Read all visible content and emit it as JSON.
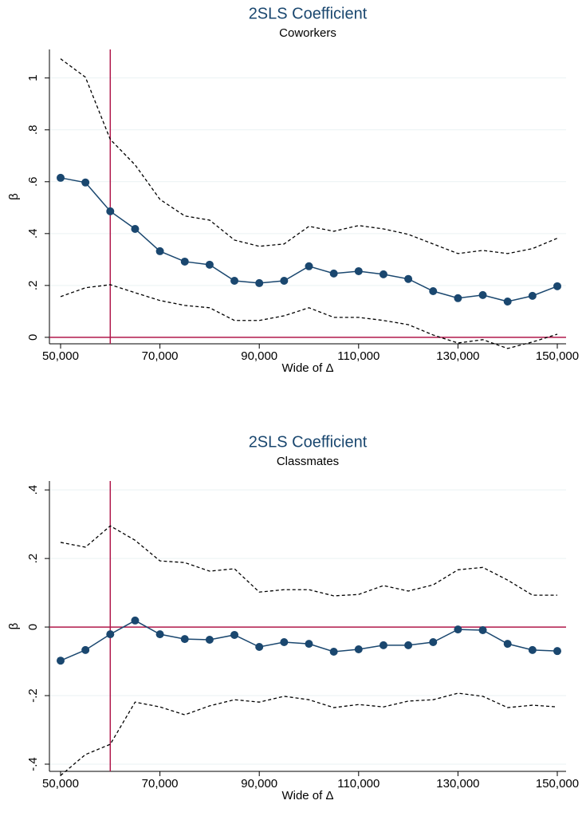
{
  "chart_data": [
    {
      "type": "line",
      "title": "2SLS Coefficient",
      "subtitle": "Coworkers",
      "x_label": "Wide of Δ",
      "y_label": "β",
      "x": [
        50000,
        55000,
        60000,
        65000,
        70000,
        75000,
        80000,
        85000,
        90000,
        95000,
        100000,
        105000,
        110000,
        115000,
        120000,
        125000,
        130000,
        135000,
        140000,
        145000,
        150000
      ],
      "series": [
        {
          "color": "#1a476f",
          "style": "solid",
          "markers": true,
          "values": [
            0.615,
            0.597,
            0.486,
            0.418,
            0.332,
            0.292,
            0.28,
            0.218,
            0.209,
            0.218,
            0.274,
            0.246,
            0.255,
            0.243,
            0.225,
            0.178,
            0.151,
            0.163,
            0.138,
            0.16,
            0.197
          ]
        },
        {
          "color": "#000000",
          "style": "dashed",
          "markers": false,
          "values": [
            1.074,
            1.003,
            0.763,
            0.665,
            0.532,
            0.468,
            0.452,
            0.375,
            0.351,
            0.36,
            0.428,
            0.409,
            0.431,
            0.418,
            0.397,
            0.36,
            0.323,
            0.335,
            0.323,
            0.342,
            0.382
          ]
        },
        {
          "color": "#000000",
          "style": "dashed",
          "markers": false,
          "values": [
            0.157,
            0.191,
            0.203,
            0.172,
            0.142,
            0.123,
            0.114,
            0.065,
            0.065,
            0.083,
            0.114,
            0.077,
            0.077,
            0.065,
            0.049,
            0.009,
            -0.022,
            -0.009,
            -0.043,
            -0.018,
            0.012
          ]
        }
      ],
      "xlim": [
        50000,
        150000
      ],
      "xticks": [
        {
          "value": 50000,
          "label": "50,000"
        },
        {
          "value": 70000,
          "label": "70,000"
        },
        {
          "value": 90000,
          "label": "90,000"
        },
        {
          "value": 110000,
          "label": "110,000"
        },
        {
          "value": 130000,
          "label": "130,000"
        },
        {
          "value": 150000,
          "label": "150,000"
        }
      ],
      "ylim": [
        -0.025,
        1.11
      ],
      "yticks": [
        0,
        {
          "value": 0.2,
          "label": ".2"
        },
        {
          "value": 0.4,
          "label": ".4"
        },
        {
          "value": 0.6,
          "label": ".6"
        },
        {
          "value": 0.8,
          "label": ".8"
        },
        1
      ],
      "grid": true,
      "vlines": [
        60000
      ],
      "hlines": [
        0
      ],
      "refline_color": "#b0174a"
    },
    {
      "type": "line",
      "title": "2SLS Coefficient",
      "subtitle": "Classmates",
      "x_label": "Wide of Δ",
      "y_label": "β",
      "x": [
        50000,
        55000,
        60000,
        65000,
        70000,
        75000,
        80000,
        85000,
        90000,
        95000,
        100000,
        105000,
        110000,
        115000,
        120000,
        125000,
        130000,
        135000,
        140000,
        145000,
        150000
      ],
      "series": [
        {
          "color": "#1a476f",
          "style": "solid",
          "markers": true,
          "values": [
            -0.098,
            -0.067,
            -0.021,
            0.019,
            -0.021,
            -0.035,
            -0.037,
            -0.023,
            -0.058,
            -0.044,
            -0.049,
            -0.072,
            -0.065,
            -0.053,
            -0.053,
            -0.044,
            -0.007,
            -0.009,
            -0.049,
            -0.067,
            -0.07
          ]
        },
        {
          "color": "#000000",
          "style": "dashed",
          "markers": false,
          "values": [
            0.247,
            0.233,
            0.295,
            0.253,
            0.193,
            0.188,
            0.163,
            0.17,
            0.102,
            0.109,
            0.109,
            0.091,
            0.095,
            0.121,
            0.105,
            0.123,
            0.167,
            0.174,
            0.137,
            0.093,
            0.093
          ]
        },
        {
          "color": "#000000",
          "style": "dashed",
          "markers": false,
          "values": [
            -0.433,
            -0.372,
            -0.342,
            -0.219,
            -0.233,
            -0.256,
            -0.23,
            -0.212,
            -0.219,
            -0.202,
            -0.212,
            -0.235,
            -0.226,
            -0.233,
            -0.216,
            -0.212,
            -0.193,
            -0.202,
            -0.235,
            -0.228,
            -0.233
          ]
        }
      ],
      "xlim": [
        50000,
        150000
      ],
      "xticks": [
        {
          "value": 50000,
          "label": "50,000"
        },
        {
          "value": 70000,
          "label": "70,000"
        },
        {
          "value": 90000,
          "label": "90,000"
        },
        {
          "value": 110000,
          "label": "110,000"
        },
        {
          "value": 130000,
          "label": "130,000"
        },
        {
          "value": 150000,
          "label": "150,000"
        }
      ],
      "ylim": [
        -0.421,
        0.426
      ],
      "yticks": [
        {
          "value": -0.4,
          "label": "-.4"
        },
        {
          "value": -0.2,
          "label": "-.2"
        },
        0,
        {
          "value": 0.2,
          "label": ".2"
        },
        {
          "value": 0.4,
          "label": ".4"
        }
      ],
      "grid": true,
      "vlines": [
        60000
      ],
      "hlines": [
        0
      ],
      "refline_color": "#b0174a"
    }
  ]
}
